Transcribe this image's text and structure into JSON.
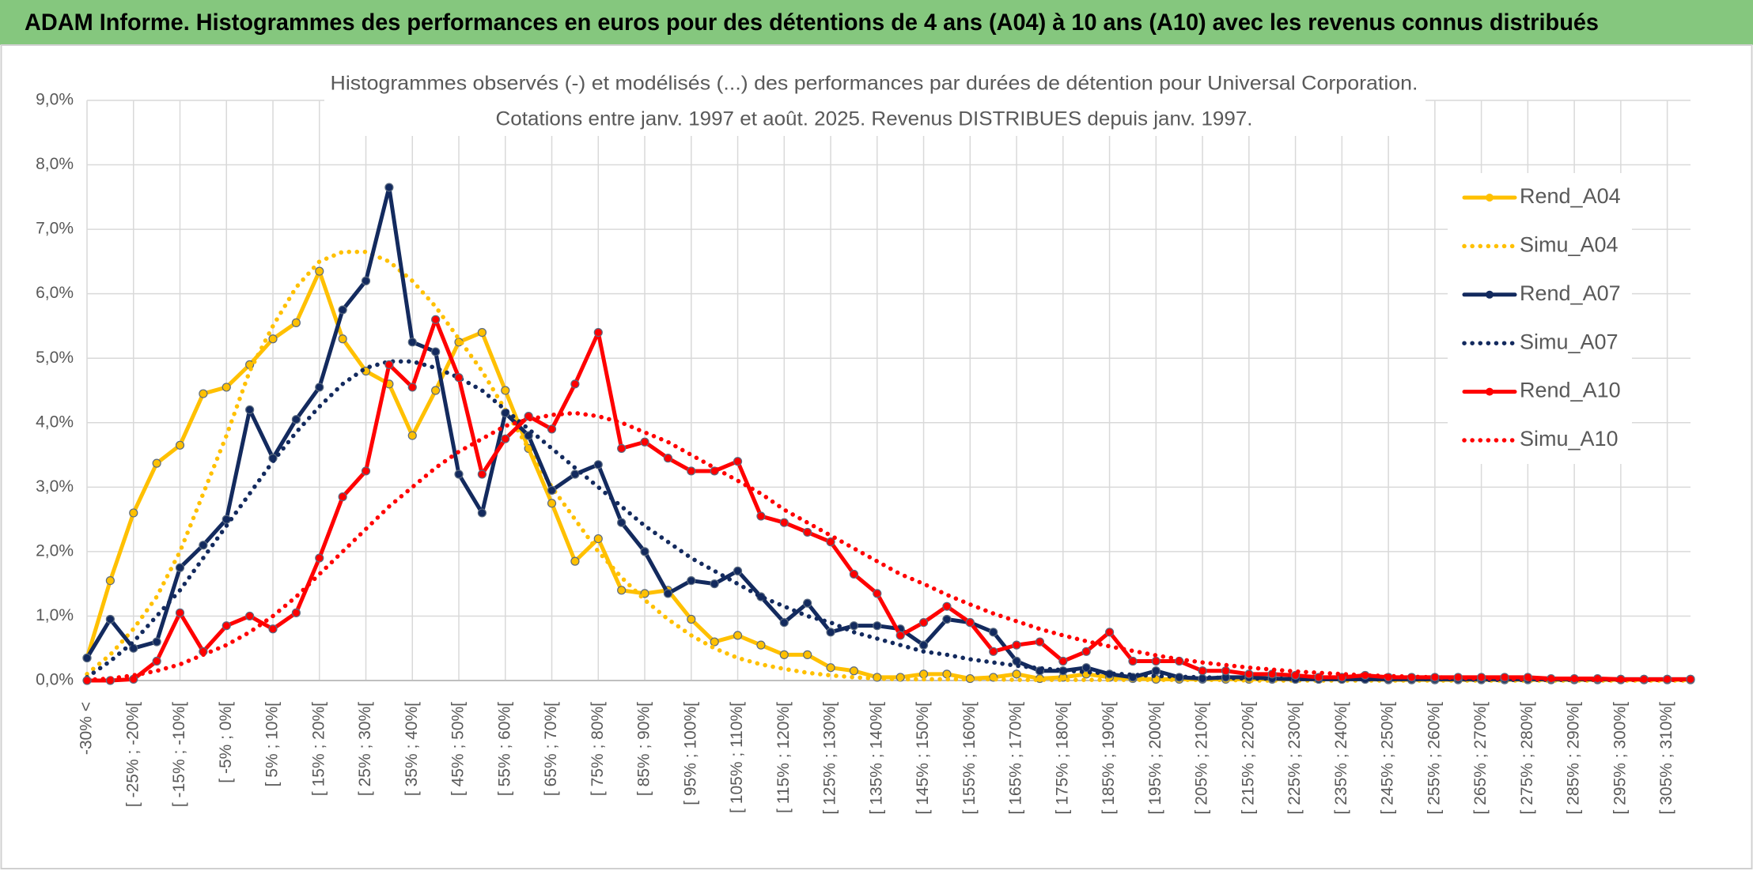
{
  "chart_data": {
    "type": "line",
    "title": "ADAM Informe. Histogrammes des performances en euros pour des détentions de 4 ans (A04) à 10 ans (A10) avec les revenus connus distribués",
    "subtitle": [
      "Histogrammes observés (-) et modélisés (...) des performances par durées de détention pour Universal Corporation.",
      "Cotations entre janv. 1997 et août. 2025. Revenus DISTRIBUES depuis janv. 1997."
    ],
    "categories": [
      "-30% <",
      null,
      "[ -25% ; -20%[",
      null,
      "[ -15% ; -10%[",
      null,
      "[ -5% ; 0%[",
      null,
      "[ 5% ; 10%[",
      null,
      "[ 15% ; 20%[",
      null,
      "[ 25% ; 30%[",
      null,
      "[ 35% ; 40%[",
      null,
      "[ 45% ; 50%[",
      null,
      "[ 55% ; 60%[",
      null,
      "[ 65% ; 70%[",
      null,
      "[ 75% ; 80%[",
      null,
      "[ 85% ; 90%[",
      null,
      "[ 95% ; 100%[",
      null,
      "[ 105% ; 110%[",
      null,
      "[ 115% ; 120%[",
      null,
      "[ 125% ; 130%[",
      null,
      "[ 135% ; 140%[",
      null,
      "[ 145% ; 150%[",
      null,
      "[ 155% ; 160%[",
      null,
      "[ 165% ; 170%[",
      null,
      "[ 175% ; 180%[",
      null,
      "[ 185% ; 190%[",
      null,
      "[ 195% ; 200%[",
      null,
      "[ 205% ; 210%[",
      null,
      "[ 215% ; 220%[",
      null,
      "[ 225% ; 230%[",
      null,
      "[ 235% ; 240%[",
      null,
      "[ 245% ; 250%[",
      null,
      "[ 255% ; 260%[",
      null,
      "[ 265% ; 270%[",
      null,
      "[ 275% ; 280%[",
      null,
      "[ 285% ; 290%[",
      null,
      "[ 295% ; 300%[",
      null,
      "[ 305% ; 310%[",
      null
    ],
    "series": [
      {
        "name": "Rend_A04",
        "color": "#ffc000",
        "line_style": "solid",
        "markers": true,
        "values": [
          0.35,
          1.55,
          2.6,
          3.37,
          3.65,
          4.45,
          4.55,
          4.9,
          5.3,
          5.55,
          6.35,
          5.3,
          4.8,
          4.6,
          3.8,
          4.5,
          5.25,
          5.4,
          4.5,
          3.6,
          2.75,
          1.85,
          2.2,
          1.4,
          1.35,
          1.4,
          0.95,
          0.6,
          0.7,
          0.55,
          0.4,
          0.4,
          0.2,
          0.15,
          0.05,
          0.05,
          0.1,
          0.1,
          0.03,
          0.05,
          0.1,
          0.03,
          0.05,
          0.1,
          0.05,
          0.03,
          0.02,
          0.02,
          0.02,
          0.02,
          0.02,
          0.02,
          0.02,
          0.02,
          0.02,
          0.02,
          0.01,
          0.01,
          0.01,
          0.01,
          0.01,
          0.01,
          0.01,
          0.01,
          0.01,
          0.01,
          0.01,
          0.01,
          0.01,
          0.01
        ]
      },
      {
        "name": "Simu_A04",
        "color": "#ffc000",
        "line_style": "dotted",
        "markers": false,
        "values": [
          0.1,
          0.4,
          0.8,
          1.3,
          2.0,
          2.9,
          3.8,
          4.8,
          5.5,
          6.1,
          6.5,
          6.65,
          6.65,
          6.5,
          6.2,
          5.8,
          5.3,
          4.8,
          4.2,
          3.6,
          3.0,
          2.5,
          2.0,
          1.6,
          1.25,
          0.95,
          0.7,
          0.5,
          0.35,
          0.25,
          0.18,
          0.12,
          0.08,
          0.05,
          0.03,
          0.02,
          0.02,
          0.02,
          0.02,
          0.02,
          0.01,
          0.01,
          0.01,
          0.01,
          0.01,
          0.01,
          0.01,
          0.01,
          0.01,
          0.01,
          0,
          0,
          0,
          0,
          0,
          0,
          0,
          0,
          0,
          0,
          0,
          0,
          0,
          0,
          0,
          0,
          0,
          0,
          0,
          0
        ]
      },
      {
        "name": "Rend_A07",
        "color": "#132a5e",
        "line_style": "solid",
        "markers": true,
        "values": [
          0.35,
          0.95,
          0.5,
          0.6,
          1.75,
          2.1,
          2.5,
          4.2,
          3.45,
          4.05,
          4.55,
          5.75,
          6.2,
          7.65,
          5.25,
          5.1,
          3.2,
          2.6,
          4.15,
          3.8,
          2.95,
          3.2,
          3.35,
          2.45,
          2.0,
          1.35,
          1.55,
          1.5,
          1.7,
          1.3,
          0.9,
          1.2,
          0.75,
          0.85,
          0.85,
          0.8,
          0.55,
          0.95,
          0.9,
          0.75,
          0.3,
          0.15,
          0.15,
          0.2,
          0.1,
          0.05,
          0.15,
          0.05,
          0.03,
          0.05,
          0.05,
          0.03,
          0.02,
          0.02,
          0.02,
          0.02,
          0.02,
          0.02,
          0.02,
          0.02,
          0.02,
          0.02,
          0.02,
          0.02,
          0.02,
          0.02,
          0.02,
          0.02,
          0.02,
          0.02
        ]
      },
      {
        "name": "Simu_A07",
        "color": "#132a5e",
        "line_style": "dotted",
        "markers": false,
        "values": [
          0.05,
          0.3,
          0.6,
          1.0,
          1.4,
          1.9,
          2.4,
          2.9,
          3.4,
          3.85,
          4.25,
          4.6,
          4.85,
          4.95,
          4.95,
          4.85,
          4.7,
          4.5,
          4.2,
          3.9,
          3.6,
          3.3,
          3.0,
          2.7,
          2.4,
          2.15,
          1.9,
          1.7,
          1.5,
          1.3,
          1.15,
          1.0,
          0.9,
          0.75,
          0.65,
          0.55,
          0.45,
          0.4,
          0.33,
          0.28,
          0.23,
          0.19,
          0.16,
          0.13,
          0.11,
          0.09,
          0.07,
          0.06,
          0.05,
          0.04,
          0.03,
          0.03,
          0.03,
          0.03,
          0.03,
          0.02,
          0.02,
          0.02,
          0.02,
          0.02,
          0.01,
          0.01,
          0.01,
          0.01,
          0.01,
          0.01,
          0.01,
          0.01,
          0.01,
          0.01
        ]
      },
      {
        "name": "Rend_A10",
        "color": "#ff0000",
        "line_style": "solid",
        "markers": true,
        "values": [
          0,
          0,
          0.02,
          0.3,
          1.05,
          0.45,
          0.85,
          1.0,
          0.8,
          1.05,
          1.9,
          2.85,
          3.25,
          4.9,
          4.55,
          5.6,
          4.7,
          3.2,
          3.75,
          4.1,
          3.9,
          4.6,
          5.4,
          3.6,
          3.7,
          3.45,
          3.25,
          3.25,
          3.4,
          2.55,
          2.45,
          2.3,
          2.15,
          1.65,
          1.35,
          0.7,
          0.9,
          1.15,
          0.9,
          0.45,
          0.55,
          0.6,
          0.3,
          0.45,
          0.75,
          0.3,
          0.3,
          0.3,
          0.15,
          0.15,
          0.1,
          0.1,
          0.08,
          0.05,
          0.05,
          0.08,
          0.05,
          0.05,
          0.05,
          0.05,
          0.05,
          0.05,
          0.05,
          0.03,
          0.03,
          0.03,
          0.02,
          0.02,
          0.02,
          0.02
        ]
      },
      {
        "name": "Simu_A10",
        "color": "#ff0000",
        "line_style": "dotted",
        "markers": false,
        "values": [
          0.01,
          0.03,
          0.08,
          0.15,
          0.25,
          0.4,
          0.55,
          0.75,
          1.0,
          1.3,
          1.65,
          2.0,
          2.35,
          2.7,
          3.0,
          3.3,
          3.55,
          3.75,
          3.95,
          4.05,
          4.12,
          4.15,
          4.1,
          4.0,
          3.85,
          3.7,
          3.5,
          3.3,
          3.1,
          2.9,
          2.65,
          2.45,
          2.25,
          2.05,
          1.85,
          1.65,
          1.5,
          1.33,
          1.18,
          1.04,
          0.92,
          0.8,
          0.7,
          0.61,
          0.53,
          0.46,
          0.39,
          0.33,
          0.28,
          0.24,
          0.2,
          0.17,
          0.14,
          0.12,
          0.1,
          0.08,
          0.07,
          0.06,
          0.05,
          0.04,
          0.03,
          0.03,
          0.02,
          0.02,
          0.02,
          0.01,
          0.01,
          0.01,
          0.01,
          0.01
        ]
      }
    ],
    "ylim": [
      0,
      9
    ],
    "yticks": [
      {
        "value": 0,
        "label": "0,0%"
      },
      {
        "value": 1,
        "label": "1,0%"
      },
      {
        "value": 2,
        "label": "2,0%"
      },
      {
        "value": 3,
        "label": "3,0%"
      },
      {
        "value": 4,
        "label": "4,0%"
      },
      {
        "value": 5,
        "label": "5,0%"
      },
      {
        "value": 6,
        "label": "6,0%"
      },
      {
        "value": 7,
        "label": "7,0%"
      },
      {
        "value": 8,
        "label": "8,0%"
      },
      {
        "value": 9,
        "label": "9,0%"
      }
    ],
    "grid": true,
    "legend": "right"
  }
}
